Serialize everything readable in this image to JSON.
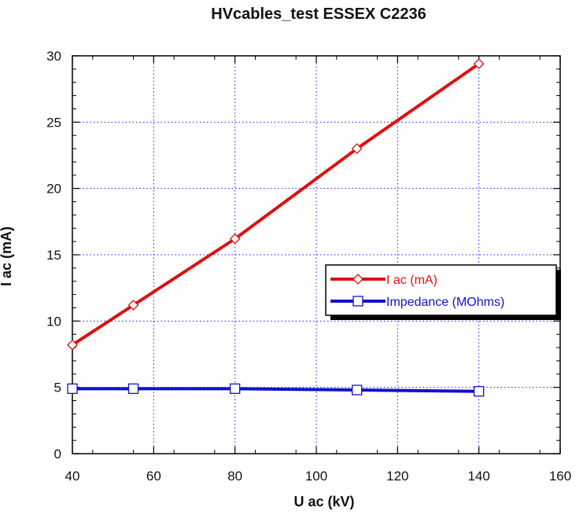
{
  "colors": {
    "series1": "#dd1111",
    "series2": "#1111cc",
    "grid": "#1a1aff",
    "axis": "#000000",
    "background": "#ffffff"
  },
  "chart_data": {
    "type": "line",
    "title": "HVcables_test ESSEX C2236",
    "xlabel": "U ac (kV)",
    "ylabel": "I ac (mA)",
    "xlim": [
      40,
      160
    ],
    "ylim": [
      0,
      30
    ],
    "xticks": [
      "40",
      "60",
      "80",
      "100",
      "120",
      "140",
      "160"
    ],
    "yticks": [
      "0",
      "5",
      "10",
      "15",
      "20",
      "25",
      "30"
    ],
    "grid": true,
    "legend_position": "right",
    "series": [
      {
        "name": "I ac (mA)",
        "marker": "diamond",
        "color_key": "series1",
        "x": [
          40,
          55,
          80,
          110,
          140
        ],
        "y": [
          8.2,
          11.2,
          16.2,
          23.0,
          29.4
        ]
      },
      {
        "name": "Impedance (MOhms)",
        "marker": "square",
        "color_key": "series2",
        "x": [
          40,
          55,
          80,
          110,
          140
        ],
        "y": [
          4.9,
          4.9,
          4.9,
          4.8,
          4.7
        ]
      }
    ]
  }
}
